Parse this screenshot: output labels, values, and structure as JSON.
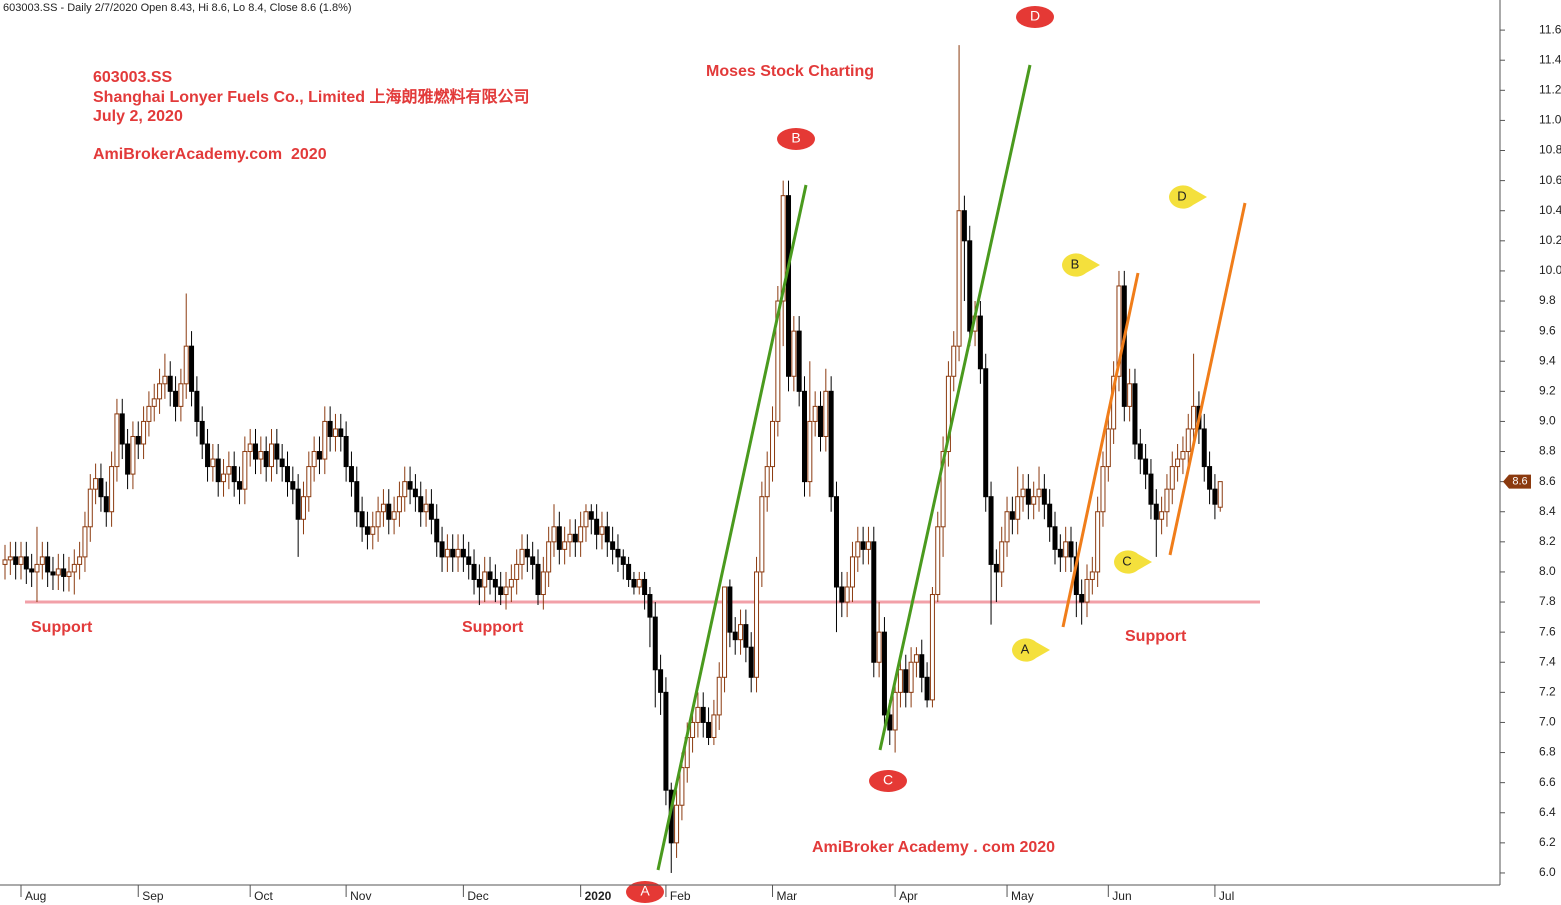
{
  "chart_data": {
    "type": "candlestick",
    "header": "603003.SS - Daily 2/7/2020 Open 8.43, Hi 8.6, Lo 8.4, Close 8.6 (1.8%)",
    "title_lines": [
      "603003.SS",
      "Shanghai Lonyer Fuels Co., Limited 上海朗雅燃料有限公司",
      "July 2, 2020",
      "AmiBrokerAcademy.com  2020"
    ],
    "subtitle": "Moses Stock Charting",
    "footer": "AmiBroker Academy . com 2020",
    "support_labels": [
      "Support",
      "Support",
      "Support"
    ],
    "red_markers": [
      "A",
      "B",
      "C",
      "D"
    ],
    "yellow_markers": [
      "A",
      "B",
      "C",
      "D"
    ],
    "support_level": 7.8,
    "up_color": "#8b3a0f",
    "down_color": "#000000",
    "categories": [
      null,
      null,
      null,
      "Aug",
      null,
      null,
      null,
      null,
      null,
      null,
      null,
      null,
      null,
      null,
      null,
      null,
      null,
      null,
      null,
      null,
      null,
      null,
      null,
      null,
      null,
      "Sep",
      null,
      null,
      null,
      null,
      null,
      null,
      null,
      null,
      null,
      null,
      null,
      null,
      null,
      null,
      null,
      null,
      null,
      null,
      null,
      null,
      "Oct",
      null,
      null,
      null,
      null,
      null,
      null,
      null,
      null,
      null,
      null,
      null,
      null,
      null,
      null,
      null,
      null,
      null,
      "Nov",
      null,
      null,
      null,
      null,
      null,
      null,
      null,
      null,
      null,
      null,
      null,
      null,
      null,
      null,
      null,
      null,
      null,
      null,
      null,
      null,
      null,
      "Dec",
      null,
      null,
      null,
      null,
      null,
      null,
      null,
      null,
      null,
      null,
      null,
      null,
      null,
      null,
      null,
      null,
      null,
      null,
      null,
      null,
      null,
      "2020",
      null,
      null,
      null,
      null,
      null,
      null,
      null,
      null,
      null,
      null,
      null,
      null,
      null,
      null,
      null,
      "Feb",
      null,
      null,
      null,
      null,
      null,
      null,
      null,
      null,
      null,
      null,
      null,
      null,
      null,
      null,
      null,
      null,
      null,
      null,
      null,
      "Mar",
      null,
      null,
      null,
      null,
      null,
      null,
      null,
      null,
      null,
      null,
      null,
      null,
      null,
      null,
      null,
      null,
      null,
      null,
      null,
      null,
      null,
      null,
      "Apr",
      null,
      null,
      null,
      null,
      null,
      null,
      null,
      null,
      null,
      null,
      null,
      null,
      null,
      null,
      null,
      null,
      null,
      null,
      null,
      null,
      "May",
      null,
      null,
      null,
      null,
      null,
      null,
      null,
      null,
      null,
      null,
      null,
      null,
      null,
      null,
      null,
      null,
      null,
      null,
      "Jun",
      null,
      null,
      null,
      null,
      null,
      null,
      null,
      null,
      null,
      null,
      null,
      null,
      null,
      null,
      null,
      null,
      null,
      null,
      null,
      "Jul",
      null
    ],
    "open": [
      8.05,
      8.08,
      8.1,
      8.05,
      8.1,
      8.02,
      8.0,
      8.05,
      8.1,
      8.0,
      7.98,
      8.02,
      7.97,
      8.0,
      8.05,
      8.1,
      8.3,
      8.55,
      8.62,
      8.5,
      8.4,
      8.7,
      9.05,
      8.85,
      8.65,
      8.9,
      8.85,
      9.0,
      9.1,
      9.15,
      9.25,
      9.3,
      9.2,
      9.1,
      9.25,
      9.5,
      9.2,
      9.0,
      8.85,
      8.7,
      8.75,
      8.6,
      8.65,
      8.7,
      8.6,
      8.55,
      8.8,
      8.85,
      8.75,
      8.8,
      8.7,
      8.85,
      8.75,
      8.7,
      8.6,
      8.55,
      8.35,
      8.5,
      8.7,
      8.8,
      8.75,
      9.0,
      8.9,
      8.95,
      8.9,
      8.7,
      8.6,
      8.4,
      8.3,
      8.25,
      8.3,
      8.4,
      8.45,
      8.35,
      8.4,
      8.5,
      8.6,
      8.55,
      8.5,
      8.4,
      8.45,
      8.35,
      8.2,
      8.1,
      8.15,
      8.1,
      8.15,
      8.1,
      8.05,
      7.95,
      7.9,
      8.0,
      7.95,
      7.9,
      7.85,
      7.9,
      7.95,
      8.05,
      8.15,
      8.1,
      8.05,
      7.85,
      8.0,
      8.2,
      8.3,
      8.15,
      8.2,
      8.25,
      8.2,
      8.3,
      8.4,
      8.35,
      8.25,
      8.3,
      8.2,
      8.15,
      8.1,
      8.05,
      7.95,
      7.9,
      7.95,
      7.85,
      7.7,
      7.35,
      7.2,
      6.55,
      6.2,
      6.45,
      6.7,
      6.9,
      7.0,
      7.1,
      7.0,
      6.9,
      7.05,
      7.3,
      7.9,
      7.6,
      7.55,
      7.65,
      7.5,
      7.3,
      8.0,
      8.5,
      8.7,
      9.0,
      9.8,
      10.5,
      9.3,
      9.6,
      9.2,
      8.6,
      9.0,
      9.1,
      8.9,
      9.2,
      8.5,
      7.9,
      7.8,
      7.9,
      8.1,
      8.2,
      8.15,
      8.2,
      7.4,
      7.6,
      7.05,
      6.95,
      7.2,
      7.35,
      7.2,
      7.4,
      7.45,
      7.3,
      7.15,
      7.85,
      8.3,
      8.8,
      9.3,
      9.5,
      10.4,
      10.2,
      9.6,
      9.7,
      9.35,
      8.5,
      8.05,
      8.0,
      8.2,
      8.4,
      8.35,
      8.5,
      8.55,
      8.45,
      8.5,
      8.55,
      8.45,
      8.3,
      8.15,
      8.1,
      8.2,
      8.1,
      7.85,
      7.8,
      7.95,
      8.0,
      8.4,
      8.7,
      8.95,
      9.3,
      9.9,
      9.1,
      9.25,
      8.85,
      8.75,
      8.65,
      8.45,
      8.35,
      8.4,
      8.55,
      8.7,
      8.75,
      8.8,
      8.95,
      9.1,
      8.95,
      8.7,
      8.55,
      8.43
    ],
    "high": [
      8.18,
      8.2,
      8.2,
      8.2,
      8.2,
      8.12,
      8.3,
      8.2,
      8.2,
      8.1,
      8.12,
      8.12,
      8.1,
      8.15,
      8.2,
      8.4,
      8.65,
      8.72,
      8.72,
      8.6,
      8.8,
      9.15,
      9.15,
      8.95,
      9.0,
      9.0,
      9.1,
      9.2,
      9.25,
      9.35,
      9.45,
      9.4,
      9.3,
      9.35,
      9.85,
      9.6,
      9.3,
      9.1,
      8.95,
      8.85,
      8.85,
      8.75,
      8.8,
      8.8,
      8.7,
      8.9,
      8.95,
      8.95,
      8.9,
      8.9,
      8.95,
      8.95,
      8.85,
      8.8,
      8.7,
      8.65,
      8.6,
      8.8,
      8.9,
      8.9,
      9.1,
      9.1,
      9.05,
      9.05,
      9.0,
      8.8,
      8.7,
      8.5,
      8.4,
      8.4,
      8.5,
      8.55,
      8.55,
      8.5,
      8.6,
      8.7,
      8.7,
      8.65,
      8.6,
      8.55,
      8.55,
      8.45,
      8.3,
      8.25,
      8.25,
      8.25,
      8.25,
      8.2,
      8.15,
      8.05,
      8.1,
      8.1,
      8.05,
      8.0,
      8.0,
      8.05,
      8.15,
      8.25,
      8.25,
      8.2,
      8.15,
      8.1,
      8.3,
      8.45,
      8.4,
      8.3,
      8.35,
      8.35,
      8.4,
      8.45,
      8.45,
      8.45,
      8.4,
      8.4,
      8.3,
      8.25,
      8.15,
      8.1,
      8.0,
      8.0,
      8.0,
      7.9,
      7.8,
      7.45,
      7.3,
      6.6,
      6.55,
      6.8,
      7.0,
      7.1,
      7.2,
      7.2,
      7.1,
      7.15,
      7.4,
      7.9,
      7.95,
      7.7,
      7.75,
      7.75,
      7.6,
      8.1,
      8.6,
      8.8,
      9.1,
      9.9,
      10.6,
      10.6,
      9.7,
      9.7,
      9.3,
      9.4,
      9.2,
      9.2,
      9.35,
      9.3,
      8.6,
      8.0,
      8.0,
      8.2,
      8.3,
      8.3,
      8.3,
      8.3,
      7.8,
      7.7,
      7.15,
      7.3,
      7.45,
      7.45,
      7.5,
      7.5,
      7.55,
      7.4,
      7.9,
      8.4,
      8.9,
      9.4,
      9.6,
      11.5,
      10.5,
      10.3,
      9.8,
      9.8,
      9.45,
      8.6,
      8.15,
      8.3,
      8.5,
      8.5,
      8.7,
      8.65,
      8.65,
      8.6,
      8.7,
      8.65,
      8.55,
      8.4,
      8.25,
      8.3,
      8.3,
      8.2,
      7.95,
      8.05,
      8.1,
      8.5,
      8.8,
      9.05,
      9.4,
      10.0,
      10.0,
      9.35,
      9.35,
      8.95,
      8.85,
      8.75,
      8.55,
      8.5,
      8.65,
      8.8,
      8.85,
      8.9,
      9.05,
      9.45,
      9.2,
      9.05,
      8.8,
      8.65,
      8.6
    ],
    "low": [
      7.95,
      7.98,
      7.95,
      7.95,
      7.92,
      7.9,
      7.8,
      7.95,
      7.9,
      7.88,
      7.88,
      7.87,
      7.87,
      7.85,
      7.95,
      8.0,
      8.2,
      8.45,
      8.4,
      8.3,
      8.3,
      8.6,
      8.75,
      8.55,
      8.55,
      8.75,
      8.75,
      8.9,
      9.0,
      9.05,
      9.15,
      9.1,
      9.0,
      9.0,
      9.15,
      9.1,
      8.9,
      8.75,
      8.6,
      8.6,
      8.5,
      8.5,
      8.55,
      8.5,
      8.45,
      8.45,
      8.7,
      8.65,
      8.65,
      8.6,
      8.6,
      8.65,
      8.6,
      8.5,
      8.45,
      8.1,
      8.25,
      8.4,
      8.6,
      8.65,
      8.65,
      8.8,
      8.8,
      8.8,
      8.6,
      8.5,
      8.3,
      8.2,
      8.15,
      8.15,
      8.2,
      8.3,
      8.25,
      8.25,
      8.3,
      8.4,
      8.45,
      8.4,
      8.3,
      8.3,
      8.25,
      8.1,
      8.0,
      8.0,
      8.0,
      8.0,
      8.0,
      7.95,
      7.85,
      7.78,
      7.8,
      7.85,
      7.8,
      7.78,
      7.75,
      7.8,
      7.85,
      7.95,
      8.0,
      7.95,
      7.78,
      7.75,
      7.9,
      8.1,
      8.05,
      8.05,
      8.1,
      8.1,
      8.1,
      8.2,
      8.25,
      8.15,
      8.15,
      8.1,
      8.05,
      8.0,
      7.95,
      7.9,
      7.85,
      7.85,
      7.75,
      7.5,
      7.1,
      7.05,
      6.45,
      6.0,
      6.1,
      6.35,
      6.6,
      6.8,
      6.9,
      6.9,
      6.85,
      6.85,
      6.95,
      7.2,
      7.5,
      7.45,
      7.45,
      7.4,
      7.2,
      7.2,
      7.9,
      8.4,
      8.6,
      8.9,
      9.5,
      9.2,
      9.2,
      9.1,
      8.5,
      8.5,
      8.9,
      8.8,
      8.8,
      8.4,
      7.6,
      7.7,
      7.7,
      7.8,
      8.0,
      8.05,
      8.05,
      7.3,
      7.3,
      6.95,
      6.85,
      6.8,
      7.1,
      7.1,
      7.1,
      7.3,
      7.2,
      7.1,
      7.1,
      7.8,
      8.1,
      8.7,
      9.2,
      9.4,
      9.8,
      9.5,
      9.5,
      9.25,
      8.4,
      7.65,
      7.8,
      7.9,
      8.1,
      8.25,
      8.25,
      8.4,
      8.35,
      8.35,
      8.4,
      8.35,
      8.2,
      8.05,
      8.0,
      8.0,
      8.0,
      7.7,
      7.65,
      7.7,
      7.85,
      7.9,
      8.3,
      8.6,
      8.85,
      9.2,
      9.0,
      9.0,
      8.75,
      8.65,
      8.55,
      8.35,
      8.1,
      8.25,
      8.3,
      8.45,
      8.6,
      8.65,
      8.7,
      8.85,
      8.85,
      8.6,
      8.45,
      8.35,
      8.4
    ],
    "close": [
      8.08,
      8.1,
      8.05,
      8.1,
      8.02,
      8.0,
      8.05,
      8.1,
      8.0,
      7.98,
      8.02,
      7.97,
      8.0,
      8.05,
      8.1,
      8.3,
      8.55,
      8.62,
      8.5,
      8.4,
      8.7,
      9.05,
      8.85,
      8.65,
      8.9,
      8.85,
      9.0,
      9.1,
      9.15,
      9.25,
      9.3,
      9.2,
      9.1,
      9.25,
      9.5,
      9.2,
      9.0,
      8.85,
      8.7,
      8.75,
      8.6,
      8.65,
      8.7,
      8.6,
      8.55,
      8.8,
      8.85,
      8.75,
      8.8,
      8.7,
      8.85,
      8.75,
      8.7,
      8.6,
      8.55,
      8.35,
      8.5,
      8.7,
      8.8,
      8.75,
      9.0,
      8.9,
      8.95,
      8.9,
      8.7,
      8.6,
      8.4,
      8.3,
      8.25,
      8.3,
      8.4,
      8.45,
      8.35,
      8.4,
      8.5,
      8.6,
      8.55,
      8.5,
      8.4,
      8.45,
      8.35,
      8.2,
      8.1,
      8.15,
      8.1,
      8.15,
      8.1,
      8.05,
      7.95,
      7.9,
      8.0,
      7.95,
      7.9,
      7.85,
      7.9,
      7.95,
      8.05,
      8.15,
      8.1,
      8.05,
      7.85,
      8.0,
      8.2,
      8.3,
      8.15,
      8.2,
      8.25,
      8.2,
      8.3,
      8.4,
      8.35,
      8.25,
      8.3,
      8.2,
      8.15,
      8.1,
      8.05,
      7.95,
      7.9,
      7.95,
      7.85,
      7.7,
      7.35,
      7.2,
      6.55,
      6.2,
      6.45,
      6.7,
      6.9,
      7.0,
      7.1,
      7.0,
      6.9,
      7.05,
      7.3,
      7.9,
      7.6,
      7.55,
      7.65,
      7.5,
      7.3,
      8.0,
      8.5,
      8.7,
      9.0,
      9.8,
      10.5,
      9.3,
      9.6,
      9.2,
      8.6,
      9.0,
      9.1,
      8.9,
      9.2,
      8.5,
      7.9,
      7.8,
      7.9,
      8.1,
      8.2,
      8.15,
      8.2,
      7.4,
      7.6,
      7.05,
      6.95,
      7.2,
      7.35,
      7.2,
      7.4,
      7.45,
      7.3,
      7.15,
      7.85,
      8.3,
      8.8,
      9.3,
      9.5,
      10.4,
      10.2,
      9.6,
      9.7,
      9.35,
      8.5,
      8.05,
      8.0,
      8.2,
      8.4,
      8.35,
      8.5,
      8.55,
      8.45,
      8.5,
      8.55,
      8.45,
      8.3,
      8.15,
      8.1,
      8.2,
      8.1,
      7.85,
      7.8,
      7.95,
      8.0,
      8.4,
      8.7,
      8.95,
      9.3,
      9.9,
      9.1,
      9.25,
      8.85,
      8.75,
      8.65,
      8.45,
      8.35,
      8.4,
      8.55,
      8.7,
      8.75,
      8.8,
      8.95,
      9.1,
      8.95,
      8.7,
      8.55,
      8.45,
      8.6
    ],
    "ylim": [
      5.92,
      11.8
    ],
    "yticks": [
      {
        "value": 6,
        "label": "6.0"
      },
      6.2,
      6.4,
      6.6,
      6.8,
      {
        "value": 7,
        "label": "7.0"
      },
      7.2,
      7.4,
      7.6,
      7.8,
      {
        "value": 8,
        "label": "8.0"
      },
      8.2,
      8.4,
      8.6,
      8.8,
      {
        "value": 9,
        "label": "9.0"
      },
      9.2,
      9.4,
      9.6,
      9.8,
      {
        "value": 10,
        "label": "10.0"
      },
      10.2,
      10.4,
      10.6,
      10.8,
      {
        "value": 11,
        "label": "11.0"
      },
      11.2,
      11.4,
      11.6
    ]
  }
}
